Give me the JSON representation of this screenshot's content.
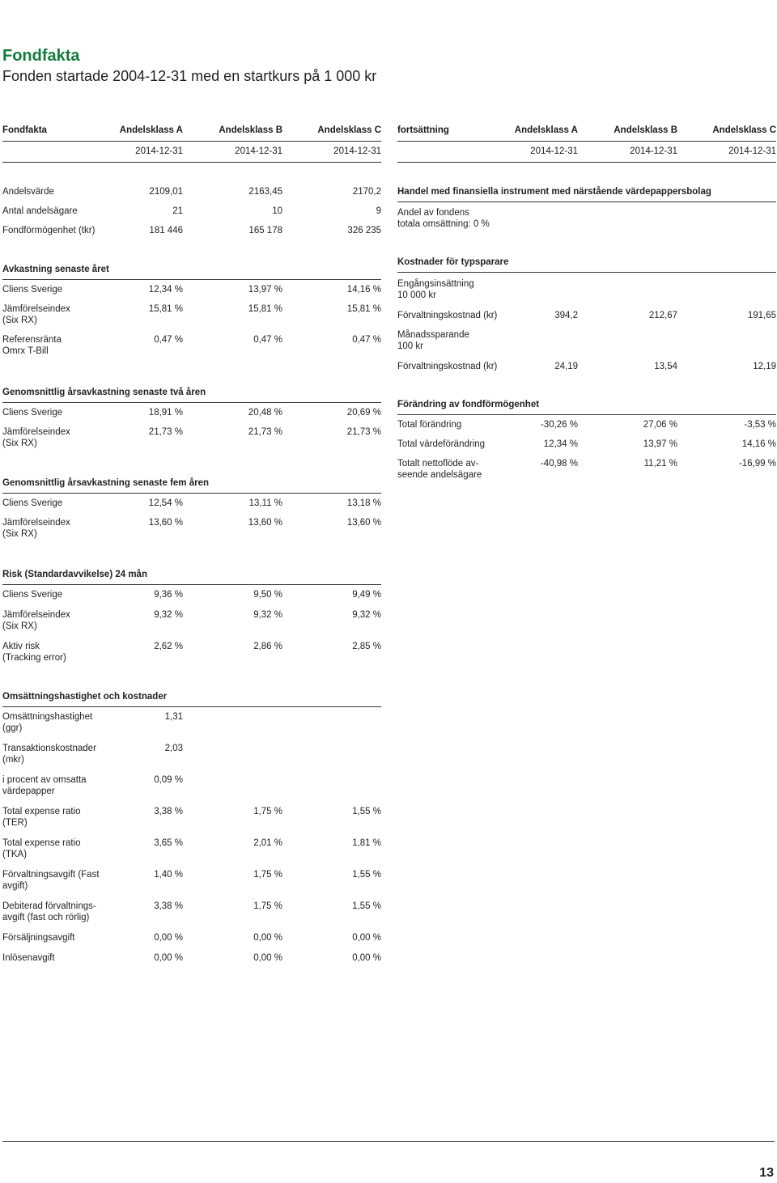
{
  "title": "Fondfakta",
  "subtitle": "Fonden startade 2004-12-31 med en startkurs på 1 000 kr",
  "left": {
    "header": {
      "label": "Fondfakta",
      "a": "Andelsklass A",
      "b": "Andelsklass B",
      "c": "Andelsklass C"
    },
    "dates": {
      "a": "2014-12-31",
      "b": "2014-12-31",
      "c": "2014-12-31"
    },
    "facts": [
      {
        "label": "Andelsvärde",
        "a": "2109,01",
        "b": "2163,45",
        "c": "2170,2"
      },
      {
        "label": "Antal andelsägare",
        "a": "21",
        "b": "10",
        "c": "9"
      },
      {
        "label": "Fondförmögenhet (tkr)",
        "a": "181 446",
        "b": "165 178",
        "c": "326 235"
      }
    ],
    "avk": {
      "title": "Avkastning senaste året",
      "rows": [
        {
          "label": "Cliens Sverige",
          "a": "12,34 %",
          "b": "13,97 %",
          "c": "14,16 %"
        },
        {
          "label": "Jämförelseindex",
          "label2": "(Six RX)",
          "a": "15,81 %",
          "b": "15,81 %",
          "c": "15,81 %"
        },
        {
          "label": "Referensränta",
          "label2": "Omrx T-Bill",
          "a": "0,47 %",
          "b": "0,47 %",
          "c": "0,47 %"
        }
      ]
    },
    "two": {
      "title": "Genomsnittlig årsavkastning senaste två åren",
      "rows": [
        {
          "label": "Cliens Sverige",
          "a": "18,91 %",
          "b": "20,48 %",
          "c": "20,69 %"
        },
        {
          "label": "Jämförelseindex",
          "label2": "(Six RX)",
          "a": "21,73 %",
          "b": "21,73 %",
          "c": "21,73 %"
        }
      ]
    },
    "five": {
      "title": "Genomsnittlig årsavkastning senaste fem åren",
      "rows": [
        {
          "label": "Cliens Sverige",
          "a": "12,54 %",
          "b": "13,11 %",
          "c": "13,18 %"
        },
        {
          "label": "Jämförelseindex",
          "label2": "(Six RX)",
          "a": "13,60 %",
          "b": "13,60 %",
          "c": "13,60 %"
        }
      ]
    },
    "risk": {
      "title": "Risk (Standardavvikelse) 24 mån",
      "rows": [
        {
          "label": "Cliens Sverige",
          "a": "9,36 %",
          "b": "9,50 %",
          "c": "9,49 %"
        },
        {
          "label": "Jämförelseindex",
          "label2": "(Six RX)",
          "a": "9,32 %",
          "b": "9,32 %",
          "c": "9,32 %"
        },
        {
          "label": "Aktiv risk",
          "label2": "(Tracking error)",
          "a": "2,62 %",
          "b": "2,86 %",
          "c": "2,85 %"
        }
      ]
    },
    "oms": {
      "title": "Omsättningshastighet och kostnader",
      "rows": [
        {
          "label": "Omsättningshastighet",
          "label2": "(ggr)",
          "a": "1,31",
          "b": "",
          "c": ""
        },
        {
          "label": "Transaktionskostnader",
          "label2": "(mkr)",
          "a": "2,03",
          "b": "",
          "c": ""
        },
        {
          "label": "i procent av omsatta",
          "label2": "värdepapper",
          "a": "0,09 %",
          "b": "",
          "c": ""
        },
        {
          "label": "Total expense ratio",
          "label2": "(TER)",
          "a": "3,38 %",
          "b": "1,75 %",
          "c": "1,55 %"
        },
        {
          "label": "Total expense ratio",
          "label2": "(TKA)",
          "a": "3,65 %",
          "b": "2,01 %",
          "c": "1,81 %"
        },
        {
          "label": "Förvaltningsavgift (Fast",
          "label2": "avgift)",
          "a": "1,40 %",
          "b": "1,75 %",
          "c": "1,55 %"
        },
        {
          "label": "Debiterad förvaltnings-",
          "label2": "avgift (fast och rörlig)",
          "a": "3,38 %",
          "b": "1,75 %",
          "c": "1,55 %"
        },
        {
          "label": "Försäljningsavgift",
          "a": "0,00 %",
          "b": "0,00 %",
          "c": "0,00 %"
        },
        {
          "label": "Inlösenavgift",
          "a": "0,00 %",
          "b": "0,00 %",
          "c": "0,00 %"
        }
      ]
    }
  },
  "right": {
    "header": {
      "label": "fortsättning",
      "a": "Andelsklass A",
      "b": "Andelsklass B",
      "c": "Andelsklass C"
    },
    "dates": {
      "a": "2014-12-31",
      "b": "2014-12-31",
      "c": "2014-12-31"
    },
    "handel": {
      "title": "Handel med finansiella instrument med närstående värdepappersbolag",
      "line1": "Andel av fondens",
      "line2": "totala omsättning: 0 %"
    },
    "kost": {
      "title": "Kostnader för typsparare",
      "eng1": "Engångsinsättning",
      "eng2": "10 000 kr",
      "row1": {
        "label": "Förvaltningskostnad (kr)",
        "a": "394,2",
        "b": "212,67",
        "c": "191,65"
      },
      "man1": "Månadssparande",
      "man2": "100 kr",
      "row2": {
        "label": "Förvaltningskostnad (kr)",
        "a": "24,19",
        "b": "13,54",
        "c": "12,19"
      }
    },
    "forand": {
      "title": "Förändring av fondförmögenhet",
      "rows": [
        {
          "label": "Total förändring",
          "a": "-30,26 %",
          "b": "27,06 %",
          "c": "-3,53 %"
        },
        {
          "label": "Total värdeförändring",
          "a": "12,34 %",
          "b": "13,97 %",
          "c": "14,16 %"
        },
        {
          "label": "Totalt nettoflöde av-",
          "label2": "seende andelsägare",
          "a": "-40,98 %",
          "b": "11,21 %",
          "c": "-16,99 %"
        }
      ]
    }
  },
  "page_number": "13"
}
